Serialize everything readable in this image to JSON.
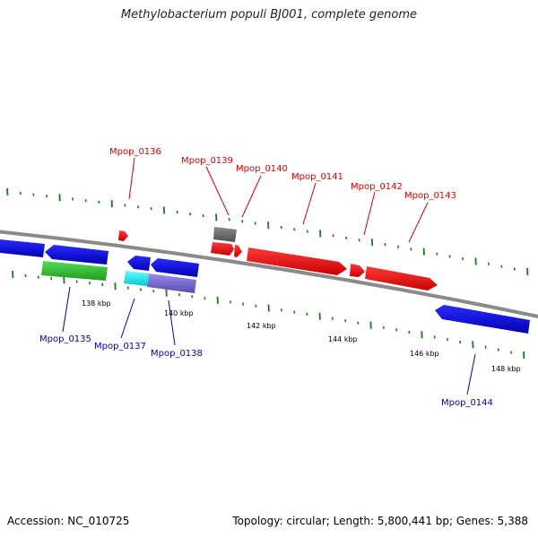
{
  "title": "Methylobacterium populi BJ001, complete genome",
  "footer": {
    "accession": "Accession: NC_010725",
    "topology": "Topology: circular; Length: 5,800,441 bp; Genes: 5,388"
  },
  "scale_labels": [
    "138 kbp",
    "140 kbp",
    "142 kbp",
    "144 kbp",
    "146 kbp",
    "148 kbp"
  ],
  "genes": [
    {
      "name": "Mpop_0136",
      "strand": "+",
      "color": "#e60000"
    },
    {
      "name": "Mpop_0139",
      "strand": "+",
      "color": "#6e6e6e"
    },
    {
      "name": "Mpop_0140",
      "strand": "+",
      "color": "#e60000"
    },
    {
      "name": "Mpop_0141",
      "strand": "+",
      "color": "#e60000"
    },
    {
      "name": "Mpop_0142",
      "strand": "+",
      "color": "#e60000"
    },
    {
      "name": "Mpop_0143",
      "strand": "+",
      "color": "#e60000"
    },
    {
      "name": "Mpop_0135",
      "strand": "-",
      "color": "#2ab82a"
    },
    {
      "name": "Mpop_0137",
      "strand": "-",
      "color": "#00e5e5"
    },
    {
      "name": "Mpop_0138",
      "strand": "-",
      "color": "#7766cc"
    },
    {
      "name": "Mpop_0144",
      "strand": "-",
      "color": "#0000dd"
    }
  ],
  "colors": {
    "forward_label": "#dd0000",
    "reverse_label": "#0000bb",
    "forward_gene": "#e60000",
    "reverse_gene": "#0000dd",
    "backbone": "#888888",
    "tick": "#1a7a1a"
  }
}
